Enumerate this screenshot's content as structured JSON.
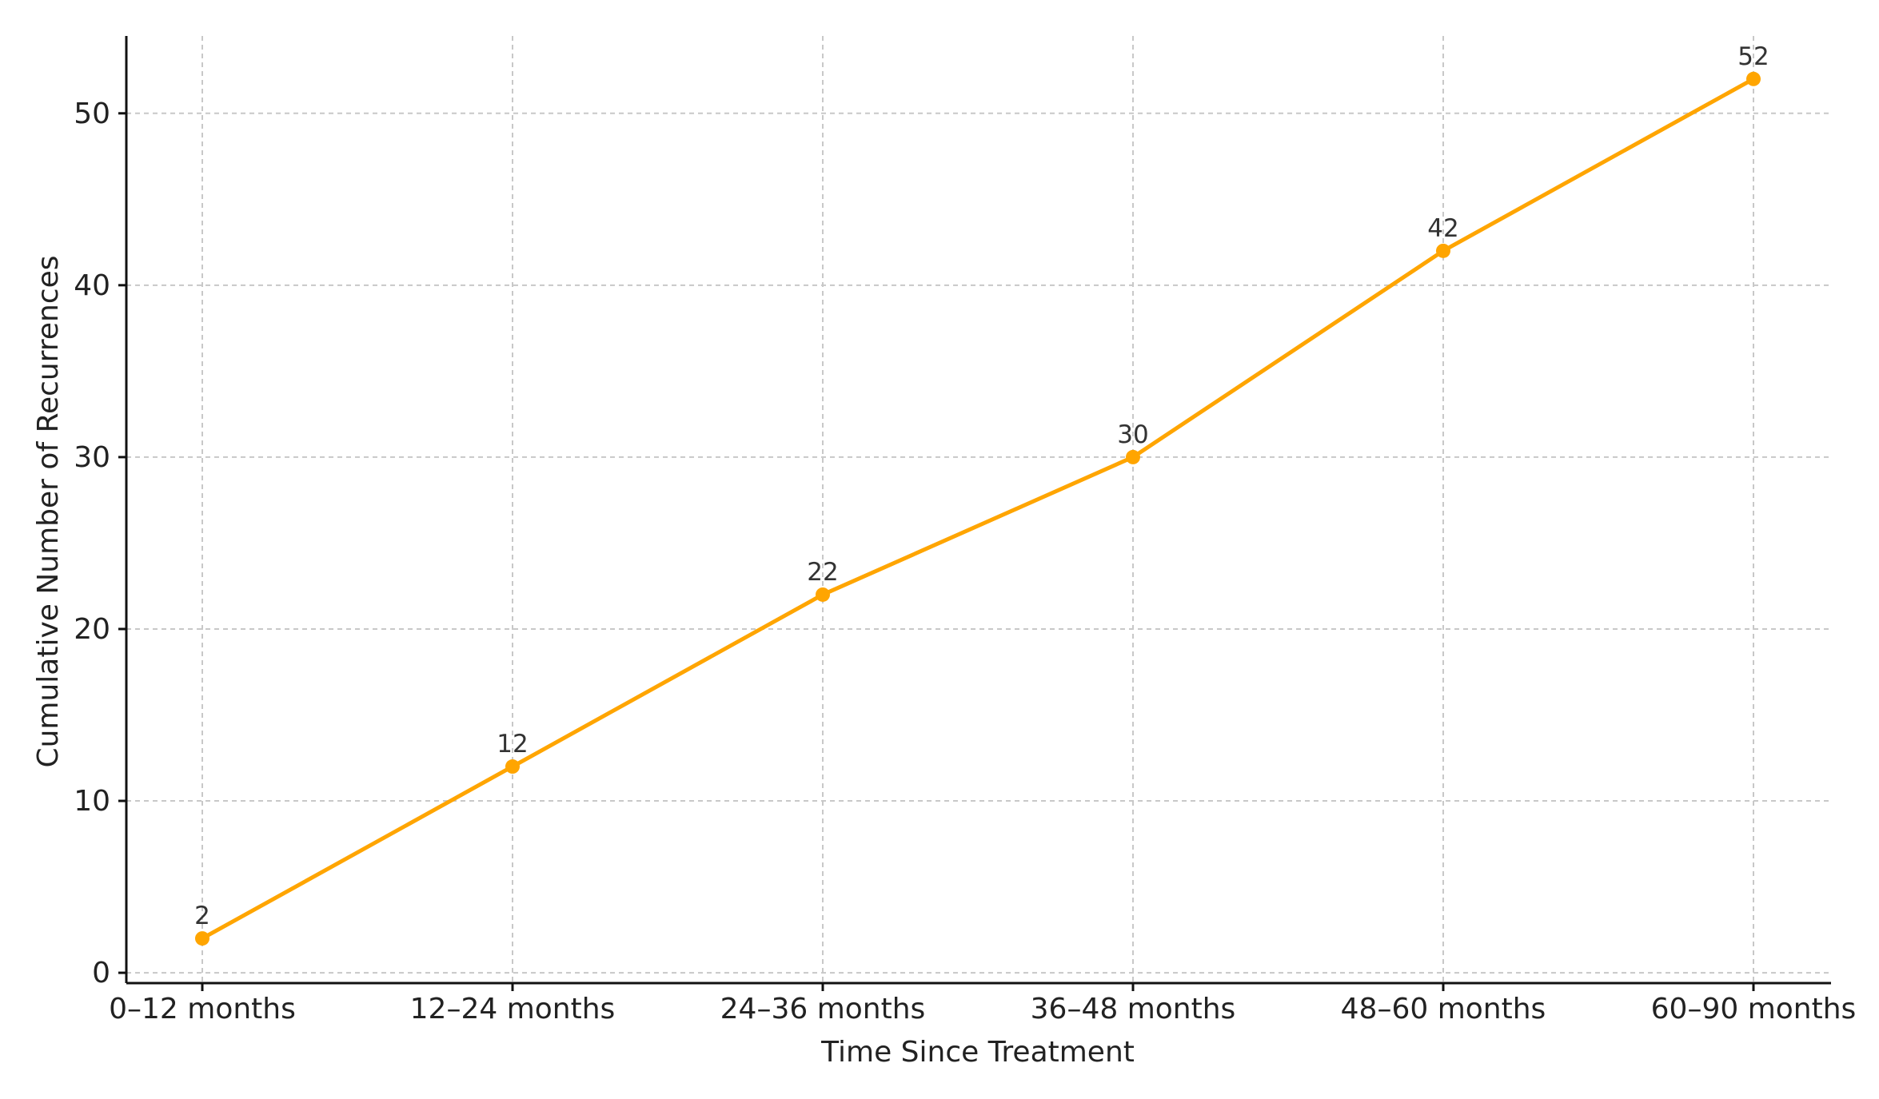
{
  "chart_data": {
    "type": "line",
    "title": "",
    "xlabel": "Time Since Treatment",
    "ylabel": "Cumulative Number of Recurrences",
    "categories": [
      "0–12 months",
      "12–24 months",
      "24–36 months",
      "36–48 months",
      "48–60 months",
      "60–90 months"
    ],
    "series": [
      {
        "values": [
          2,
          12,
          22,
          30,
          42,
          52
        ],
        "color": "#FFA500",
        "marker": "circle"
      }
    ],
    "data_labels": [
      "2",
      "12",
      "22",
      "30",
      "42",
      "52"
    ],
    "yticks": [
      0,
      10,
      20,
      30,
      40,
      50
    ],
    "ylim": [
      -0.6,
      54.5
    ],
    "grid": true,
    "legend": "none"
  }
}
